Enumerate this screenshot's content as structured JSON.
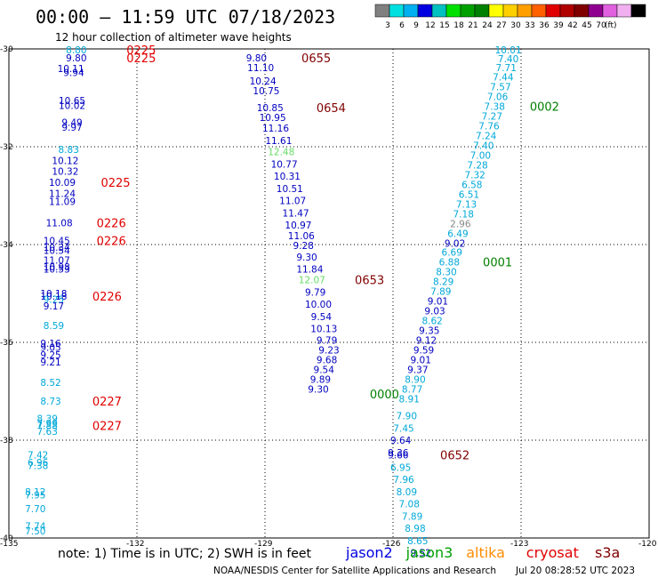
{
  "header": {
    "title": "00:00 – 11:59 UTC 07/18/2023",
    "subtitle": "12 hour collection of altimeter wave heights"
  },
  "color_scale": {
    "swatches": [
      "#808080",
      "#00e0e0",
      "#00b0f0",
      "#0000e0",
      "#00c0c0",
      "#00e000",
      "#00a000",
      "#008000",
      "#ffff00",
      "#ffd000",
      "#ffa000",
      "#ff6000",
      "#e00000",
      "#b00000",
      "#800000",
      "#900090",
      "#e060e0",
      "#f0b0f0",
      "#000000"
    ],
    "labels": [
      "3",
      "6",
      "9",
      "12",
      "15",
      "18",
      "21",
      "24",
      "27",
      "30",
      "33",
      "36",
      "39",
      "42",
      "45",
      "70",
      "(ft)"
    ]
  },
  "map": {
    "lon_min": -135,
    "lon_max": -120,
    "lat_top": -30,
    "lat_bottom": -40,
    "lon_ticks": [
      "-135",
      "-132",
      "-129",
      "-126",
      "-123",
      "-120"
    ],
    "lat_ticks": [
      "-30",
      "-32",
      "-34",
      "-36",
      "-38",
      "-40"
    ]
  },
  "colors": {
    "dark_blue": "#0000c0",
    "cyan": "#00a8d8",
    "green_light": "#66dd66",
    "gray": "#888888",
    "red": "#e00000",
    "dark_red": "#800000",
    "green": "#008000"
  },
  "tracks": [
    {
      "lon": -133.42,
      "lat": -30.02,
      "text": "8.80",
      "color": "cyan"
    },
    {
      "lon": -133.42,
      "lat": -30.18,
      "text": "9.80",
      "color": "dark_blue"
    },
    {
      "lon": -133.55,
      "lat": -30.4,
      "text": "10.11",
      "color": "dark_blue"
    },
    {
      "lon": -133.48,
      "lat": -30.48,
      "text": "9.94",
      "color": "dark_blue"
    },
    {
      "lon": -133.52,
      "lat": -31.05,
      "text": "10.65",
      "color": "dark_blue"
    },
    {
      "lon": -133.52,
      "lat": -31.15,
      "text": "10.02",
      "color": "dark_blue"
    },
    {
      "lon": -133.52,
      "lat": -31.5,
      "text": "9.49",
      "color": "dark_blue"
    },
    {
      "lon": -133.52,
      "lat": -31.6,
      "text": "9.97",
      "color": "dark_blue"
    },
    {
      "lon": -133.6,
      "lat": -32.05,
      "text": "8.83",
      "color": "cyan"
    },
    {
      "lon": -133.68,
      "lat": -32.28,
      "text": "10.12",
      "color": "dark_blue"
    },
    {
      "lon": -133.68,
      "lat": -32.5,
      "text": "10.32",
      "color": "dark_blue"
    },
    {
      "lon": -133.75,
      "lat": -32.73,
      "text": "10.09",
      "color": "dark_blue"
    },
    {
      "lon": -133.75,
      "lat": -32.95,
      "text": "11.24",
      "color": "dark_blue"
    },
    {
      "lon": -133.75,
      "lat": -33.12,
      "text": "11.09",
      "color": "dark_blue"
    },
    {
      "lon": -133.82,
      "lat": -33.55,
      "text": "11.08",
      "color": "dark_blue"
    },
    {
      "lon": -133.88,
      "lat": -33.92,
      "text": "10.45",
      "color": "dark_blue"
    },
    {
      "lon": -133.88,
      "lat": -34.05,
      "text": "10.34",
      "color": "dark_blue"
    },
    {
      "lon": -133.88,
      "lat": -34.12,
      "text": "10.54",
      "color": "dark_blue"
    },
    {
      "lon": -133.88,
      "lat": -34.32,
      "text": "11.07",
      "color": "dark_blue"
    },
    {
      "lon": -133.88,
      "lat": -34.45,
      "text": "10.98",
      "color": "dark_blue"
    },
    {
      "lon": -133.88,
      "lat": -34.5,
      "text": "10.53",
      "color": "dark_blue"
    },
    {
      "lon": -133.95,
      "lat": -35.0,
      "text": "10.18",
      "color": "dark_blue"
    },
    {
      "lon": -133.95,
      "lat": -35.05,
      "text": "10.18",
      "color": "dark_blue"
    },
    {
      "lon": -133.95,
      "lat": -35.12,
      "text": "9.25",
      "color": "cyan"
    },
    {
      "lon": -133.95,
      "lat": -35.25,
      "text": "9.17",
      "color": "dark_blue"
    },
    {
      "lon": -133.95,
      "lat": -35.65,
      "text": "8.59",
      "color": "cyan"
    },
    {
      "lon": -134.02,
      "lat": -36.02,
      "text": "9.16",
      "color": "dark_blue"
    },
    {
      "lon": -134.02,
      "lat": -36.1,
      "text": "9.05",
      "color": "dark_blue"
    },
    {
      "lon": -134.02,
      "lat": -36.25,
      "text": "9.25",
      "color": "dark_blue"
    },
    {
      "lon": -134.02,
      "lat": -36.4,
      "text": "9.21",
      "color": "dark_blue"
    },
    {
      "lon": -134.02,
      "lat": -36.82,
      "text": "8.52",
      "color": "cyan"
    },
    {
      "lon": -134.02,
      "lat": -37.2,
      "text": "8.73",
      "color": "cyan"
    },
    {
      "lon": -134.1,
      "lat": -37.55,
      "text": "8.39",
      "color": "cyan"
    },
    {
      "lon": -134.1,
      "lat": -37.65,
      "text": "7.99",
      "color": "cyan"
    },
    {
      "lon": -134.1,
      "lat": -37.7,
      "text": "7.88",
      "color": "cyan"
    },
    {
      "lon": -134.1,
      "lat": -37.82,
      "text": "7.63",
      "color": "cyan"
    },
    {
      "lon": -134.32,
      "lat": -38.3,
      "text": "7.42",
      "color": "cyan"
    },
    {
      "lon": -134.32,
      "lat": -38.45,
      "text": "6.96",
      "color": "cyan"
    },
    {
      "lon": -134.32,
      "lat": -38.52,
      "text": "7.38",
      "color": "cyan"
    },
    {
      "lon": -134.38,
      "lat": -39.05,
      "text": "8.12",
      "color": "cyan"
    },
    {
      "lon": -134.38,
      "lat": -39.12,
      "text": "7.95",
      "color": "cyan"
    },
    {
      "lon": -134.38,
      "lat": -39.4,
      "text": "7.70",
      "color": "cyan"
    },
    {
      "lon": -134.38,
      "lat": -39.75,
      "text": "7.74",
      "color": "cyan"
    },
    {
      "lon": -134.38,
      "lat": -39.85,
      "text": "7.50",
      "color": "cyan"
    },
    {
      "lon": -129.2,
      "lat": -30.18,
      "text": "9.80",
      "color": "dark_blue"
    },
    {
      "lon": -129.1,
      "lat": -30.38,
      "text": "11.10",
      "color": "dark_blue"
    },
    {
      "lon": -129.05,
      "lat": -30.65,
      "text": "10.24",
      "color": "dark_blue"
    },
    {
      "lon": -128.97,
      "lat": -30.85,
      "text": "10.75",
      "color": "dark_blue"
    },
    {
      "lon": -128.88,
      "lat": -31.2,
      "text": "10.85",
      "color": "dark_blue"
    },
    {
      "lon": -128.82,
      "lat": -31.4,
      "text": "10.95",
      "color": "dark_blue"
    },
    {
      "lon": -128.75,
      "lat": -31.62,
      "text": "11.16",
      "color": "dark_blue"
    },
    {
      "lon": -128.68,
      "lat": -31.87,
      "text": "11.61",
      "color": "dark_blue"
    },
    {
      "lon": -128.62,
      "lat": -32.1,
      "text": "12.48",
      "color": "green_light"
    },
    {
      "lon": -128.55,
      "lat": -32.35,
      "text": "10.77",
      "color": "dark_blue"
    },
    {
      "lon": -128.48,
      "lat": -32.6,
      "text": "10.31",
      "color": "dark_blue"
    },
    {
      "lon": -128.42,
      "lat": -32.85,
      "text": "10.51",
      "color": "dark_blue"
    },
    {
      "lon": -128.35,
      "lat": -33.1,
      "text": "11.07",
      "color": "dark_blue"
    },
    {
      "lon": -128.28,
      "lat": -33.35,
      "text": "11.47",
      "color": "dark_blue"
    },
    {
      "lon": -128.22,
      "lat": -33.6,
      "text": "10.97",
      "color": "dark_blue"
    },
    {
      "lon": -128.15,
      "lat": -33.82,
      "text": "11.06",
      "color": "dark_blue"
    },
    {
      "lon": -128.1,
      "lat": -34.02,
      "text": "9.28",
      "color": "dark_blue"
    },
    {
      "lon": -128.02,
      "lat": -34.25,
      "text": "9.30",
      "color": "dark_blue"
    },
    {
      "lon": -127.95,
      "lat": -34.5,
      "text": "11.84",
      "color": "dark_blue"
    },
    {
      "lon": -127.9,
      "lat": -34.72,
      "text": "12.07",
      "color": "green_light"
    },
    {
      "lon": -127.82,
      "lat": -34.97,
      "text": "9.79",
      "color": "dark_blue"
    },
    {
      "lon": -127.75,
      "lat": -35.22,
      "text": "10.00",
      "color": "dark_blue"
    },
    {
      "lon": -127.68,
      "lat": -35.47,
      "text": "9.54",
      "color": "dark_blue"
    },
    {
      "lon": -127.62,
      "lat": -35.72,
      "text": "10.13",
      "color": "dark_blue"
    },
    {
      "lon": -127.55,
      "lat": -35.95,
      "text": "9.79",
      "color": "dark_blue"
    },
    {
      "lon": -127.5,
      "lat": -36.15,
      "text": "9.23",
      "color": "dark_blue"
    },
    {
      "lon": -127.55,
      "lat": -36.35,
      "text": "9.68",
      "color": "dark_blue"
    },
    {
      "lon": -127.62,
      "lat": -36.55,
      "text": "9.54",
      "color": "dark_blue"
    },
    {
      "lon": -127.7,
      "lat": -36.75,
      "text": "9.89",
      "color": "dark_blue"
    },
    {
      "lon": -127.75,
      "lat": -36.95,
      "text": "9.30",
      "color": "dark_blue"
    },
    {
      "lon": -123.3,
      "lat": -30.02,
      "text": "10.01",
      "color": "cyan"
    },
    {
      "lon": -123.3,
      "lat": -30.2,
      "text": "7.40",
      "color": "cyan"
    },
    {
      "lon": -123.35,
      "lat": -30.38,
      "text": "7.71",
      "color": "cyan"
    },
    {
      "lon": -123.42,
      "lat": -30.57,
      "text": "7.44",
      "color": "cyan"
    },
    {
      "lon": -123.48,
      "lat": -30.77,
      "text": "7.57",
      "color": "cyan"
    },
    {
      "lon": -123.55,
      "lat": -30.97,
      "text": "7.06",
      "color": "cyan"
    },
    {
      "lon": -123.62,
      "lat": -31.17,
      "text": "7.38",
      "color": "cyan"
    },
    {
      "lon": -123.68,
      "lat": -31.37,
      "text": "7.27",
      "color": "cyan"
    },
    {
      "lon": -123.75,
      "lat": -31.57,
      "text": "7.76",
      "color": "cyan"
    },
    {
      "lon": -123.82,
      "lat": -31.77,
      "text": "7.24",
      "color": "cyan"
    },
    {
      "lon": -123.88,
      "lat": -31.97,
      "text": "7.40",
      "color": "cyan"
    },
    {
      "lon": -123.95,
      "lat": -32.17,
      "text": "7.00",
      "color": "cyan"
    },
    {
      "lon": -124.02,
      "lat": -32.37,
      "text": "7.28",
      "color": "cyan"
    },
    {
      "lon": -124.08,
      "lat": -32.57,
      "text": "7.32",
      "color": "cyan"
    },
    {
      "lon": -124.15,
      "lat": -32.77,
      "text": "6.58",
      "color": "cyan"
    },
    {
      "lon": -124.22,
      "lat": -32.97,
      "text": "6.51",
      "color": "cyan"
    },
    {
      "lon": -124.28,
      "lat": -33.17,
      "text": "7.13",
      "color": "cyan"
    },
    {
      "lon": -124.35,
      "lat": -33.37,
      "text": "7.18",
      "color": "cyan"
    },
    {
      "lon": -124.42,
      "lat": -33.57,
      "text": "2.96",
      "color": "gray"
    },
    {
      "lon": -124.48,
      "lat": -33.77,
      "text": "6.49",
      "color": "cyan"
    },
    {
      "lon": -124.55,
      "lat": -33.97,
      "text": "9.02",
      "color": "dark_blue"
    },
    {
      "lon": -124.62,
      "lat": -34.15,
      "text": "6.69",
      "color": "cyan"
    },
    {
      "lon": -124.68,
      "lat": -34.35,
      "text": "6.88",
      "color": "cyan"
    },
    {
      "lon": -124.75,
      "lat": -34.55,
      "text": "8.30",
      "color": "cyan"
    },
    {
      "lon": -124.82,
      "lat": -34.75,
      "text": "8.29",
      "color": "cyan"
    },
    {
      "lon": -124.88,
      "lat": -34.95,
      "text": "7.89",
      "color": "cyan"
    },
    {
      "lon": -124.95,
      "lat": -35.15,
      "text": "9.01",
      "color": "dark_blue"
    },
    {
      "lon": -125.02,
      "lat": -35.35,
      "text": "9.03",
      "color": "dark_blue"
    },
    {
      "lon": -125.08,
      "lat": -35.55,
      "text": "8.62",
      "color": "cyan"
    },
    {
      "lon": -125.15,
      "lat": -35.75,
      "text": "9.35",
      "color": "dark_blue"
    },
    {
      "lon": -125.22,
      "lat": -35.95,
      "text": "9.12",
      "color": "dark_blue"
    },
    {
      "lon": -125.28,
      "lat": -36.15,
      "text": "9.59",
      "color": "dark_blue"
    },
    {
      "lon": -125.35,
      "lat": -36.35,
      "text": "9.01",
      "color": "dark_blue"
    },
    {
      "lon": -125.42,
      "lat": -36.55,
      "text": "9.37",
      "color": "dark_blue"
    },
    {
      "lon": -125.48,
      "lat": -36.75,
      "text": "8.90",
      "color": "cyan"
    },
    {
      "lon": -125.55,
      "lat": -36.95,
      "text": "8.77",
      "color": "cyan"
    },
    {
      "lon": -125.62,
      "lat": -37.15,
      "text": "8.91",
      "color": "cyan"
    },
    {
      "lon": -125.68,
      "lat": -37.5,
      "text": "7.90",
      "color": "cyan"
    },
    {
      "lon": -125.75,
      "lat": -37.75,
      "text": "7.45",
      "color": "cyan"
    },
    {
      "lon": -125.82,
      "lat": -38.0,
      "text": "9.64",
      "color": "dark_blue"
    },
    {
      "lon": -125.88,
      "lat": -38.25,
      "text": "9.36",
      "color": "dark_blue"
    },
    {
      "lon": -125.88,
      "lat": -38.3,
      "text": "9.66",
      "color": "dark_blue"
    },
    {
      "lon": -125.82,
      "lat": -38.55,
      "text": "6.95",
      "color": "cyan"
    },
    {
      "lon": -125.75,
      "lat": -38.8,
      "text": "7.96",
      "color": "cyan"
    },
    {
      "lon": -125.68,
      "lat": -39.05,
      "text": "8.09",
      "color": "cyan"
    },
    {
      "lon": -125.62,
      "lat": -39.3,
      "text": "7.08",
      "color": "cyan"
    },
    {
      "lon": -125.55,
      "lat": -39.55,
      "text": "7.89",
      "color": "cyan"
    },
    {
      "lon": -125.48,
      "lat": -39.8,
      "text": "8.98",
      "color": "cyan"
    },
    {
      "lon": -125.42,
      "lat": -40.05,
      "text": "8.65",
      "color": "cyan"
    },
    {
      "lon": -125.35,
      "lat": -40.3,
      "text": "9.52",
      "color": "dark_blue"
    }
  ],
  "time_labels": [
    {
      "lon": -131.9,
      "lat": -30.02,
      "text": "0225",
      "color": "red"
    },
    {
      "lon": -131.9,
      "lat": -30.18,
      "text": "0225",
      "color": "red"
    },
    {
      "lon": -132.5,
      "lat": -32.73,
      "text": "0225",
      "color": "red"
    },
    {
      "lon": -132.6,
      "lat": -33.55,
      "text": "0226",
      "color": "red"
    },
    {
      "lon": -132.6,
      "lat": -33.92,
      "text": "0226",
      "color": "red"
    },
    {
      "lon": -132.7,
      "lat": -35.05,
      "text": "0226",
      "color": "red"
    },
    {
      "lon": -132.7,
      "lat": -37.2,
      "text": "0227",
      "color": "red"
    },
    {
      "lon": -132.7,
      "lat": -37.7,
      "text": "0227",
      "color": "red"
    },
    {
      "lon": -127.8,
      "lat": -30.18,
      "text": "0655",
      "color": "dark_red"
    },
    {
      "lon": -127.45,
      "lat": -31.2,
      "text": "0654",
      "color": "dark_red"
    },
    {
      "lon": -126.55,
      "lat": -34.72,
      "text": "0653",
      "color": "dark_red"
    },
    {
      "lon": -124.55,
      "lat": -38.3,
      "text": "0652",
      "color": "dark_red"
    },
    {
      "lon": -122.45,
      "lat": -31.17,
      "text": "0002",
      "color": "green"
    },
    {
      "lon": -123.55,
      "lat": -34.35,
      "text": "0001",
      "color": "green"
    },
    {
      "lon": -126.2,
      "lat": -37.05,
      "text": "0000",
      "color": "green"
    }
  ],
  "footer": {
    "note": "note:  1) Time is in UTC;  2) SWH is in feet",
    "legend": [
      {
        "text": "jason2",
        "color": "#0000e0"
      },
      {
        "text": "jason3",
        "color": "#00a000"
      },
      {
        "text": "altika",
        "color": "#ff8c00"
      },
      {
        "text": "cryosat",
        "color": "#e00000"
      },
      {
        "text": "s3a",
        "color": "#800000"
      }
    ],
    "credit": "NOAA/NESDIS Center for Satellite Applications and Research",
    "timestamp": "Jul 20 08:28:52 UTC 2023"
  }
}
